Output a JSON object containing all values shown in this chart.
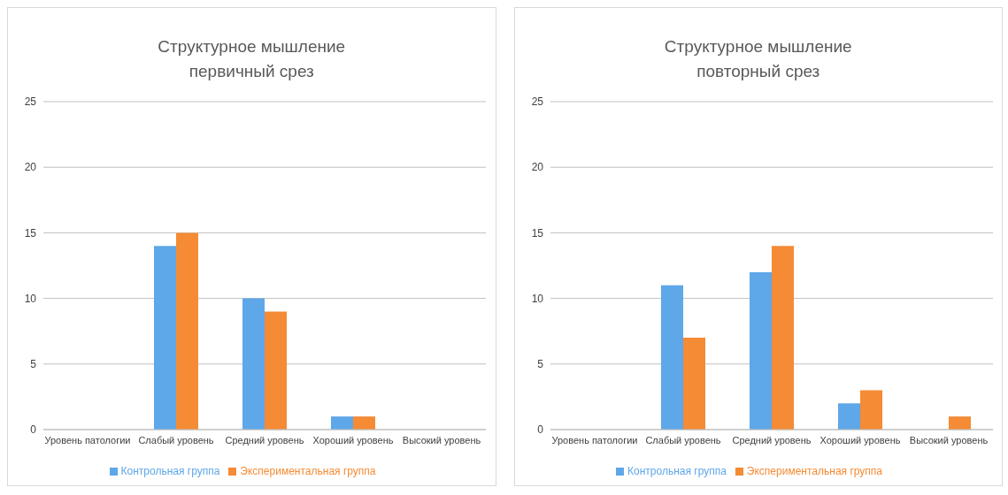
{
  "chart_data": [
    {
      "type": "bar",
      "title": "Структурное мышление",
      "subtitle": "первичный срез",
      "categories": [
        "Уровень патологии",
        "Слабый уровень",
        "Средний уровень",
        "Хороший уровень",
        "Высокий уровень"
      ],
      "series": [
        {
          "name": "Контрольная группа",
          "color": "#5ea7e8",
          "values": [
            0,
            14,
            10,
            1,
            0
          ]
        },
        {
          "name": "Экспериментальная группа",
          "color": "#f58b35",
          "values": [
            0,
            15,
            9,
            1,
            0
          ]
        }
      ],
      "ylim": [
        0,
        25
      ],
      "yticks": [
        0,
        5,
        10,
        15,
        20,
        25
      ],
      "grid": "y",
      "legend": "bottom"
    },
    {
      "type": "bar",
      "title": "Структурное мышление",
      "subtitle": "повторный срез",
      "categories": [
        "Уровень патологии",
        "Слабый уровень",
        "Средний уровень",
        "Хороший уровень",
        "Высокий уровень"
      ],
      "series": [
        {
          "name": "Контрольная группа",
          "color": "#5ea7e8",
          "values": [
            0,
            11,
            12,
            2,
            0
          ]
        },
        {
          "name": "Экспериментальная группа",
          "color": "#f58b35",
          "values": [
            0,
            7,
            14,
            3,
            1
          ]
        }
      ],
      "ylim": [
        0,
        25
      ],
      "yticks": [
        0,
        5,
        10,
        15,
        20,
        25
      ],
      "grid": "y",
      "legend": "bottom"
    }
  ]
}
